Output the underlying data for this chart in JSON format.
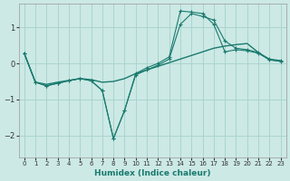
{
  "xlabel": "Humidex (Indice chaleur)",
  "bg_color": "#cce9e5",
  "grid_color": "#aad4cf",
  "line_color": "#1a7a6e",
  "xlim": [
    -0.5,
    23.5
  ],
  "ylim": [
    -2.6,
    1.65
  ],
  "xticks": [
    0,
    1,
    2,
    3,
    4,
    5,
    6,
    7,
    8,
    9,
    10,
    11,
    12,
    13,
    14,
    15,
    16,
    17,
    18,
    19,
    20,
    21,
    22,
    23
  ],
  "yticks": [
    -2,
    -1,
    0,
    1
  ],
  "line1_x": [
    0,
    1,
    2,
    3,
    4,
    5,
    6,
    7,
    8,
    9,
    10,
    11,
    12,
    13,
    14,
    15,
    16,
    17,
    18,
    19,
    20,
    21,
    22,
    23
  ],
  "line1_y": [
    0.28,
    -0.52,
    -0.62,
    -0.55,
    -0.48,
    -0.42,
    -0.48,
    -0.75,
    -2.08,
    -1.3,
    -0.32,
    -0.18,
    -0.05,
    0.12,
    1.08,
    1.38,
    1.3,
    1.2,
    0.62,
    0.42,
    0.38,
    0.3,
    0.12,
    0.08
  ],
  "line2_x": [
    0,
    1,
    2,
    3,
    4,
    5,
    6,
    7,
    8,
    9,
    10,
    11,
    12,
    13,
    14,
    15,
    16,
    17,
    18,
    19,
    20,
    21,
    22,
    23
  ],
  "line2_y": [
    0.28,
    -0.52,
    -0.62,
    -0.55,
    -0.48,
    -0.42,
    -0.48,
    -0.75,
    -2.08,
    -1.3,
    -0.28,
    -0.12,
    0.0,
    0.18,
    1.45,
    1.42,
    1.38,
    1.08,
    0.32,
    0.38,
    0.35,
    0.28,
    0.1,
    0.06
  ],
  "line3_x": [
    0,
    1,
    2,
    3,
    4,
    5,
    6,
    7,
    8,
    9,
    10,
    11,
    12,
    13,
    14,
    15,
    16,
    17,
    18,
    19,
    20,
    21,
    22,
    23
  ],
  "line3_y": [
    0.28,
    -0.52,
    -0.58,
    -0.52,
    -0.47,
    -0.42,
    -0.45,
    -0.52,
    -0.5,
    -0.42,
    -0.28,
    -0.18,
    -0.08,
    0.02,
    0.12,
    0.22,
    0.32,
    0.42,
    0.48,
    0.52,
    0.55,
    0.3,
    0.1,
    0.06
  ]
}
